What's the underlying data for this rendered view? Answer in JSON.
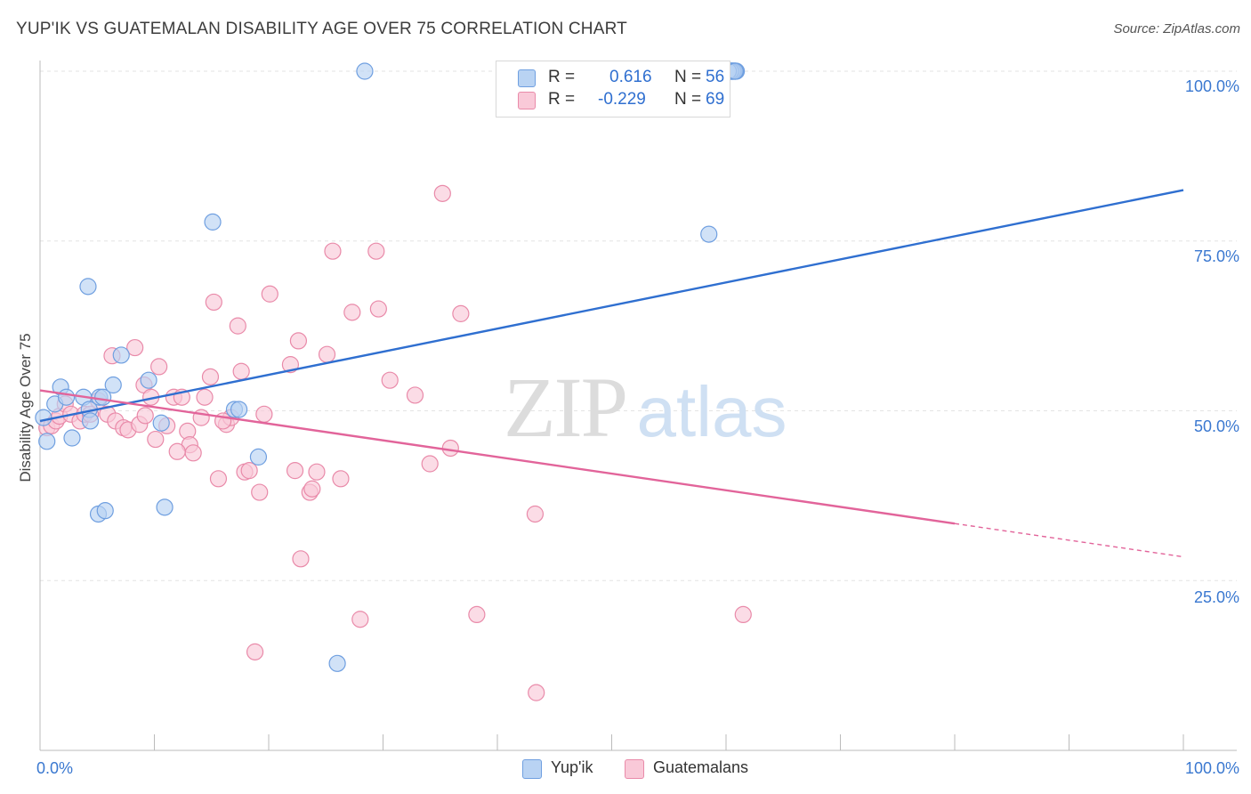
{
  "title": "YUP'IK VS GUATEMALAN DISABILITY AGE OVER 75 CORRELATION CHART",
  "source": "Source: ZipAtlas.com",
  "watermark": {
    "zip": "ZIP",
    "atlas": "atlas"
  },
  "legend": {
    "rows": [
      {
        "r_label": "R =",
        "r_value": "0.616",
        "n_label": "N =",
        "n_value": "56"
      },
      {
        "r_label": "R =",
        "r_value": "-0.229",
        "n_label": "N =",
        "n_value": "69"
      }
    ]
  },
  "bottom_legend": [
    "Yup'ik",
    "Guatemalans"
  ],
  "colors": {
    "blue_fill": "#b9d3f3",
    "blue_stroke": "#6f9fe0",
    "blue_line": "#2f6fd0",
    "pink_fill": "#f9c9d8",
    "pink_stroke": "#e98aa9",
    "pink_line": "#e2649a",
    "tick_text": "#3a78d0"
  },
  "chart_data": {
    "type": "scatter",
    "title": "YUP'IK VS GUATEMALAN DISABILITY AGE OVER 75 CORRELATION CHART",
    "xlabel": "",
    "ylabel": "Disability Age Over 75",
    "xlim": [
      0,
      100
    ],
    "ylim": [
      0,
      102
    ],
    "x_tick_labels": [
      "0.0%",
      "100.0%"
    ],
    "y_tick_labels": [
      "25.0%",
      "50.0%",
      "75.0%",
      "100.0%"
    ],
    "y_ticks": [
      25,
      50,
      75,
      100
    ],
    "grid": true,
    "legend_position": "top-center",
    "series": [
      {
        "name": "Yup'ik",
        "R": 0.616,
        "N": 56,
        "trend": {
          "x": [
            0,
            100
          ],
          "y": [
            48.5,
            82.5
          ],
          "solid_until": 100
        },
        "points": [
          [
            0.3,
            49
          ],
          [
            0.6,
            45.5
          ],
          [
            1.3,
            51
          ],
          [
            1.8,
            53.5
          ],
          [
            2.3,
            52
          ],
          [
            2.8,
            46
          ],
          [
            3.8,
            52
          ],
          [
            4.3,
            50.2
          ],
          [
            5.2,
            52
          ],
          [
            5.5,
            52
          ],
          [
            4.4,
            48.5
          ],
          [
            6.4,
            53.8
          ],
          [
            7.1,
            58.2
          ],
          [
            9.5,
            54.5
          ],
          [
            10.6,
            48.2
          ],
          [
            10.9,
            35.8
          ],
          [
            4.2,
            68.3
          ],
          [
            5.1,
            34.8
          ],
          [
            5.7,
            35.3
          ],
          [
            15.1,
            77.8
          ],
          [
            17.0,
            50.2
          ],
          [
            17.4,
            50.2
          ],
          [
            19.1,
            43.2
          ],
          [
            26.0,
            12.8
          ],
          [
            28.4,
            100
          ],
          [
            58.5,
            76
          ],
          [
            60.2,
            100
          ],
          [
            60.3,
            100
          ],
          [
            60.5,
            100
          ],
          [
            60.8,
            100
          ],
          [
            60.9,
            100
          ],
          [
            60.6,
            100
          ],
          [
            60.7,
            100
          ],
          [
            60.4,
            100
          ],
          [
            60.2,
            100
          ],
          [
            60.3,
            100
          ],
          [
            60.5,
            100
          ],
          [
            60.1,
            100
          ],
          [
            60.8,
            100
          ],
          [
            60.6,
            100
          ],
          [
            60.4,
            100
          ],
          [
            60.7,
            100
          ],
          [
            60.3,
            100
          ],
          [
            60.5,
            100
          ],
          [
            60.6,
            100
          ],
          [
            60.4,
            100
          ],
          [
            60.2,
            100
          ],
          [
            60.8,
            100
          ],
          [
            60.1,
            100
          ],
          [
            60.7,
            100
          ],
          [
            60.5,
            100
          ],
          [
            60.3,
            100
          ],
          [
            60.6,
            100
          ],
          [
            60.4,
            100
          ],
          [
            60.2,
            100
          ],
          [
            60.8,
            100
          ]
        ]
      },
      {
        "name": "Guatemalans",
        "R": -0.229,
        "N": 69,
        "trend": {
          "x": [
            0,
            100
          ],
          "y": [
            53,
            28.5
          ],
          "solid_until": 80
        },
        "points": [
          [
            0.6,
            47.5
          ],
          [
            1.0,
            47.8
          ],
          [
            1.4,
            48.5
          ],
          [
            1.7,
            49.2
          ],
          [
            2.2,
            51
          ],
          [
            2.7,
            49.5
          ],
          [
            3.5,
            48.5
          ],
          [
            3.9,
            49.5
          ],
          [
            4.4,
            49.5
          ],
          [
            5.1,
            51.5
          ],
          [
            5.9,
            49.5
          ],
          [
            6.6,
            48.5
          ],
          [
            7.3,
            47.5
          ],
          [
            7.7,
            47.2
          ],
          [
            8.3,
            59.3
          ],
          [
            8.7,
            48
          ],
          [
            9.1,
            53.8
          ],
          [
            9.7,
            52
          ],
          [
            10.1,
            45.8
          ],
          [
            10.4,
            56.5
          ],
          [
            11.1,
            47.8
          ],
          [
            11.7,
            52
          ],
          [
            12.4,
            52
          ],
          [
            12.9,
            47
          ],
          [
            13.1,
            45
          ],
          [
            13.4,
            43.8
          ],
          [
            14.1,
            49
          ],
          [
            14.4,
            52
          ],
          [
            14.9,
            55
          ],
          [
            15.2,
            66
          ],
          [
            15.6,
            40
          ],
          [
            16.3,
            48
          ],
          [
            16.7,
            49
          ],
          [
            17.3,
            62.5
          ],
          [
            17.6,
            55.8
          ],
          [
            17.9,
            41
          ],
          [
            18.3,
            41.2
          ],
          [
            18.8,
            14.5
          ],
          [
            19.2,
            38
          ],
          [
            19.6,
            49.5
          ],
          [
            20.1,
            67.2
          ],
          [
            21.9,
            56.8
          ],
          [
            22.3,
            41.2
          ],
          [
            22.6,
            60.3
          ],
          [
            22.8,
            28.2
          ],
          [
            23.6,
            38
          ],
          [
            23.8,
            38.5
          ],
          [
            24.2,
            41
          ],
          [
            25.1,
            58.3
          ],
          [
            25.6,
            73.5
          ],
          [
            26.3,
            40
          ],
          [
            27.3,
            64.5
          ],
          [
            28.0,
            19.3
          ],
          [
            29.4,
            73.5
          ],
          [
            29.6,
            65
          ],
          [
            30.6,
            54.5
          ],
          [
            32.8,
            52.3
          ],
          [
            34.1,
            42.2
          ],
          [
            35.2,
            82
          ],
          [
            35.9,
            44.5
          ],
          [
            36.8,
            64.3
          ],
          [
            38.2,
            20
          ],
          [
            43.3,
            34.8
          ],
          [
            43.4,
            8.5
          ],
          [
            61.5,
            20
          ],
          [
            6.3,
            58.1
          ],
          [
            9.2,
            49.3
          ],
          [
            12.0,
            44
          ],
          [
            16.0,
            48.5
          ]
        ]
      }
    ]
  }
}
